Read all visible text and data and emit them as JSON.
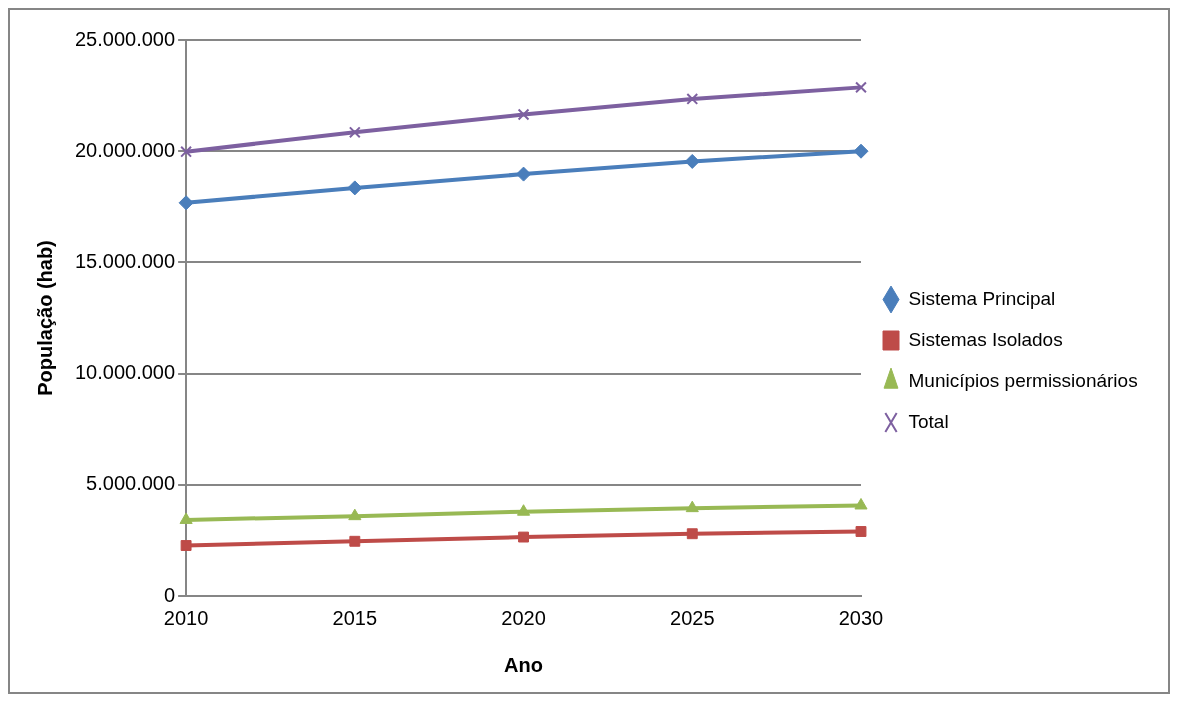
{
  "chart_data": {
    "type": "line",
    "xlabel": "Ano",
    "ylabel": "População (hab)",
    "categories": [
      "2010",
      "2015",
      "2020",
      "2025",
      "2030"
    ],
    "series": [
      {
        "name": "Sistema Principal",
        "color": "#4a7ebb",
        "marker": "diamond",
        "values": [
          17680000,
          18350000,
          18970000,
          19540000,
          20000000
        ]
      },
      {
        "name": "Sistemas Isolados",
        "color": "#be4b48",
        "marker": "square",
        "values": [
          2270000,
          2460000,
          2650000,
          2800000,
          2900000
        ]
      },
      {
        "name": "Municípios permissionários",
        "color": "#98b954",
        "marker": "triangle",
        "values": [
          3420000,
          3590000,
          3790000,
          3950000,
          4070000
        ]
      },
      {
        "name": "Total",
        "color": "#7d60a0",
        "marker": "cross",
        "values": [
          19980000,
          20850000,
          21650000,
          22350000,
          22870000
        ]
      }
    ],
    "ylim": [
      0,
      25000000
    ],
    "yticks": [
      {
        "value": 0,
        "label": "0"
      },
      {
        "value": 5000000,
        "label": "5.000.000"
      },
      {
        "value": 10000000,
        "label": "10.000.000"
      },
      {
        "value": 15000000,
        "label": "15.000.000"
      },
      {
        "value": 20000000,
        "label": "20.000.000"
      },
      {
        "value": 25000000,
        "label": "25.000.000"
      }
    ],
    "grid": "y",
    "legend": "right"
  }
}
